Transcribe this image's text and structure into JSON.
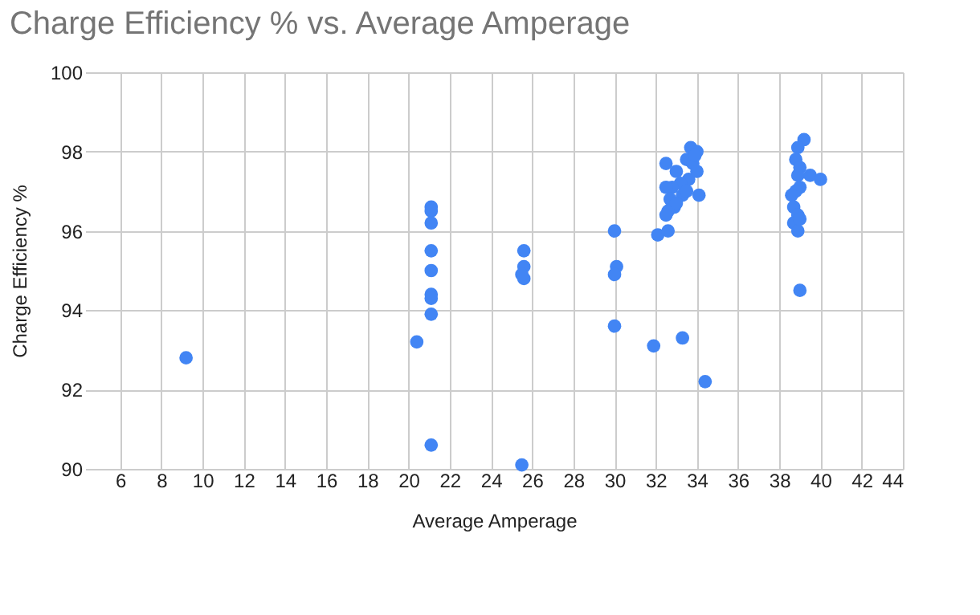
{
  "chart_data": {
    "type": "scatter",
    "title": "Charge Efficiency % vs. Average Amperage",
    "xlabel": "Average Amperage",
    "ylabel": "Charge Efficiency %",
    "x": [
      9.2,
      20.4,
      21.1,
      21.1,
      21.1,
      21.1,
      21.1,
      21.1,
      21.1,
      21.1,
      21.1,
      25.6,
      25.6,
      25.6,
      25.5,
      25.5,
      30.0,
      30.1,
      30.0,
      30.0,
      31.9,
      32.1,
      32.6,
      33.3,
      34.4,
      32.5,
      33.0,
      33.5,
      33.7,
      34.0,
      33.8,
      33.6,
      34.0,
      33.2,
      32.8,
      32.5,
      33.3,
      32.7,
      34.1,
      32.9,
      32.6,
      32.5,
      33.0,
      33.5,
      33.9,
      39.2,
      38.9,
      38.8,
      39.0,
      38.9,
      39.5,
      40.0,
      39.0,
      38.8,
      38.6,
      38.7,
      38.9,
      38.7,
      38.9,
      39.0,
      39.0
    ],
    "values": [
      92.8,
      93.2,
      96.6,
      96.5,
      96.2,
      95.5,
      95.0,
      94.4,
      94.3,
      93.9,
      90.6,
      95.5,
      95.1,
      94.8,
      94.9,
      90.1,
      96.0,
      95.1,
      94.9,
      93.6,
      93.1,
      95.9,
      96.0,
      93.3,
      92.2,
      97.7,
      97.5,
      97.8,
      98.1,
      98.0,
      97.7,
      97.3,
      97.5,
      97.2,
      97.1,
      97.1,
      96.9,
      96.8,
      96.9,
      96.6,
      96.5,
      96.4,
      96.7,
      97.0,
      97.9,
      98.3,
      98.1,
      97.8,
      97.6,
      97.4,
      97.4,
      97.3,
      97.1,
      97.0,
      96.9,
      96.6,
      96.4,
      96.2,
      96.0,
      96.3,
      94.5
    ],
    "color": "#4285f4",
    "marker": "circle",
    "xlim": [
      4.3,
      44
    ],
    "xticks": [
      6,
      8,
      10,
      12,
      14,
      16,
      18,
      20,
      22,
      24,
      26,
      28,
      30,
      32,
      34,
      36,
      38,
      40,
      42,
      44
    ],
    "ylim": [
      90,
      100
    ],
    "yticks": [
      90,
      92,
      94,
      96,
      98,
      100
    ],
    "grid": true
  }
}
